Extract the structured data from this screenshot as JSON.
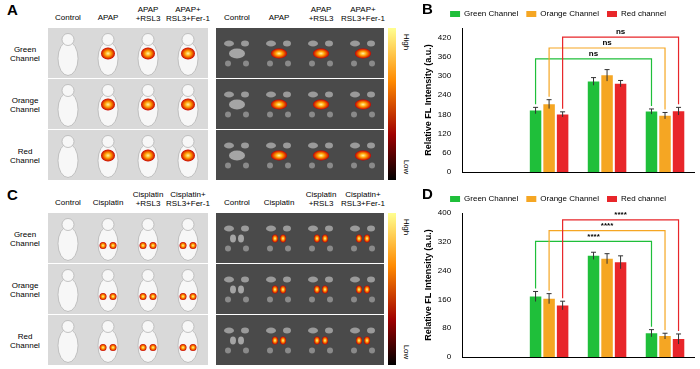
{
  "image_panels": [
    {
      "panel_label": "A",
      "column_labels": [
        [
          "Control"
        ],
        [
          "APAP"
        ],
        [
          "APAP",
          "+RSL3"
        ],
        [
          "APAP+",
          "RSL3+Fer-1"
        ]
      ],
      "row_labels": [
        [
          "Green",
          "Channel"
        ],
        [
          "Orange",
          "Channel"
        ],
        [
          "Red",
          "Channel"
        ]
      ],
      "colorbar_labels": [
        "High",
        "Low"
      ]
    },
    {
      "panel_label": "C",
      "column_labels": [
        [
          "Control"
        ],
        [
          "Cisplatin"
        ],
        [
          "Cisplatin",
          "+RSL3"
        ],
        [
          "Cisplatin+",
          "RSL3+Fer-1"
        ]
      ],
      "row_labels": [
        [
          "Green",
          "Channel"
        ],
        [
          "Orange",
          "Channel"
        ],
        [
          "Red",
          "Channel"
        ]
      ],
      "colorbar_labels": [
        "High",
        "Low"
      ]
    }
  ],
  "chart_data": [
    {
      "panel_label": "B",
      "type": "bar",
      "y_label": "Relative FL Intensity (a.u.)",
      "categories": [
        null,
        null,
        null,
        null
      ],
      "series": [
        {
          "name": "Green Channel",
          "color": "#1fbf3a",
          "values": [
            0,
            192,
            283,
            189
          ],
          "errors": [
            0,
            10,
            12,
            8
          ]
        },
        {
          "name": "Orange Channel",
          "color": "#f5a623",
          "values": [
            0,
            212,
            302,
            176
          ],
          "errors": [
            0,
            14,
            18,
            10
          ]
        },
        {
          "name": "Red channel",
          "color": "#e8262a",
          "values": [
            0,
            180,
            276,
            190
          ],
          "errors": [
            0,
            8,
            10,
            12
          ]
        }
      ],
      "ylim": [
        0,
        450
      ],
      "yticks": [
        0,
        60,
        120,
        180,
        240,
        300,
        360,
        420
      ],
      "grid": false,
      "legend": "top",
      "tick_labels": "y",
      "annotations": [
        {
          "text": "ns",
          "from": 1,
          "to": 3,
          "series": 0
        },
        {
          "text": "ns",
          "from": 1,
          "to": 3,
          "series": 1
        },
        {
          "text": "ns",
          "from": 1,
          "to": 3,
          "series": 2
        }
      ]
    },
    {
      "panel_label": "D",
      "type": "bar",
      "y_label": "Relative FL Intensity (a.u.)",
      "categories": [
        null,
        null,
        null,
        null
      ],
      "series": [
        {
          "name": "Green Channel",
          "color": "#1fbf3a",
          "values": [
            0,
            168,
            281,
            66
          ],
          "errors": [
            0,
            14,
            10,
            10
          ]
        },
        {
          "name": "Orange Channel",
          "color": "#f5a623",
          "values": [
            0,
            162,
            273,
            58
          ],
          "errors": [
            0,
            14,
            14,
            8
          ]
        },
        {
          "name": "Red channel",
          "color": "#e8262a",
          "values": [
            0,
            143,
            263,
            50
          ],
          "errors": [
            0,
            12,
            18,
            14
          ]
        }
      ],
      "ylim": [
        0,
        400
      ],
      "yticks": [
        0,
        80,
        160,
        240,
        320,
        400
      ],
      "grid": false,
      "legend": "top",
      "tick_labels": "y",
      "annotations": [
        {
          "text": "****",
          "from": 1,
          "to": 3,
          "series": 0
        },
        {
          "text": "****",
          "from": 1,
          "to": 3,
          "series": 1
        },
        {
          "text": "****",
          "from": 1,
          "to": 3,
          "series": 2
        }
      ]
    }
  ]
}
